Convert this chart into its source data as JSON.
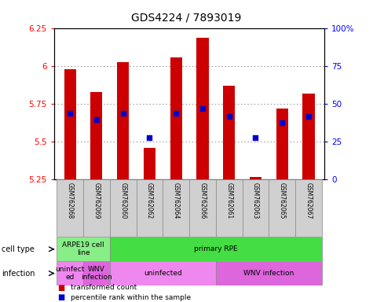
{
  "title": "GDS4224 / 7893019",
  "samples": [
    "GSM762068",
    "GSM762069",
    "GSM762060",
    "GSM762062",
    "GSM762064",
    "GSM762066",
    "GSM762061",
    "GSM762063",
    "GSM762065",
    "GSM762067"
  ],
  "transformed_counts": [
    5.98,
    5.83,
    6.03,
    5.46,
    6.06,
    6.19,
    5.87,
    5.27,
    5.72,
    5.82
  ],
  "percentile_ranks": [
    44,
    40,
    44,
    28,
    44,
    47,
    42,
    28,
    38,
    42
  ],
  "ylim_left": [
    5.25,
    6.25
  ],
  "ylim_right": [
    0,
    100
  ],
  "yticks_left": [
    5.25,
    5.5,
    5.75,
    6.0,
    6.25
  ],
  "yticks_right": [
    0,
    25,
    50,
    75,
    100
  ],
  "ytick_labels_left": [
    "5.25",
    "5.5",
    "5.75",
    "6",
    "6.25"
  ],
  "ytick_labels_right": [
    "0",
    "25",
    "50",
    "75",
    "100%"
  ],
  "bar_color": "#cc0000",
  "dot_color": "#0000cc",
  "bar_bottom": 5.25,
  "sample_box_color": "#d0d0d0",
  "cell_type_labels": [
    {
      "label": "ARPE19 cell\nline",
      "start": 0,
      "end": 2,
      "color": "#88ee88"
    },
    {
      "label": "primary RPE",
      "start": 2,
      "end": 10,
      "color": "#44dd44"
    }
  ],
  "infection_labels": [
    {
      "label": "uninfect\ned",
      "start": 0,
      "end": 1,
      "color": "#ee88ee"
    },
    {
      "label": "WNV\ninfection",
      "start": 1,
      "end": 2,
      "color": "#dd66dd"
    },
    {
      "label": "uninfected",
      "start": 2,
      "end": 6,
      "color": "#ee88ee"
    },
    {
      "label": "WNV infection",
      "start": 6,
      "end": 10,
      "color": "#dd66dd"
    }
  ],
  "legend_bar_label": "transformed count",
  "legend_dot_label": "percentile rank within the sample",
  "row_label_cell_type": "cell type",
  "row_label_infection": "infection",
  "grid_color": "#888888",
  "bar_width": 0.45
}
